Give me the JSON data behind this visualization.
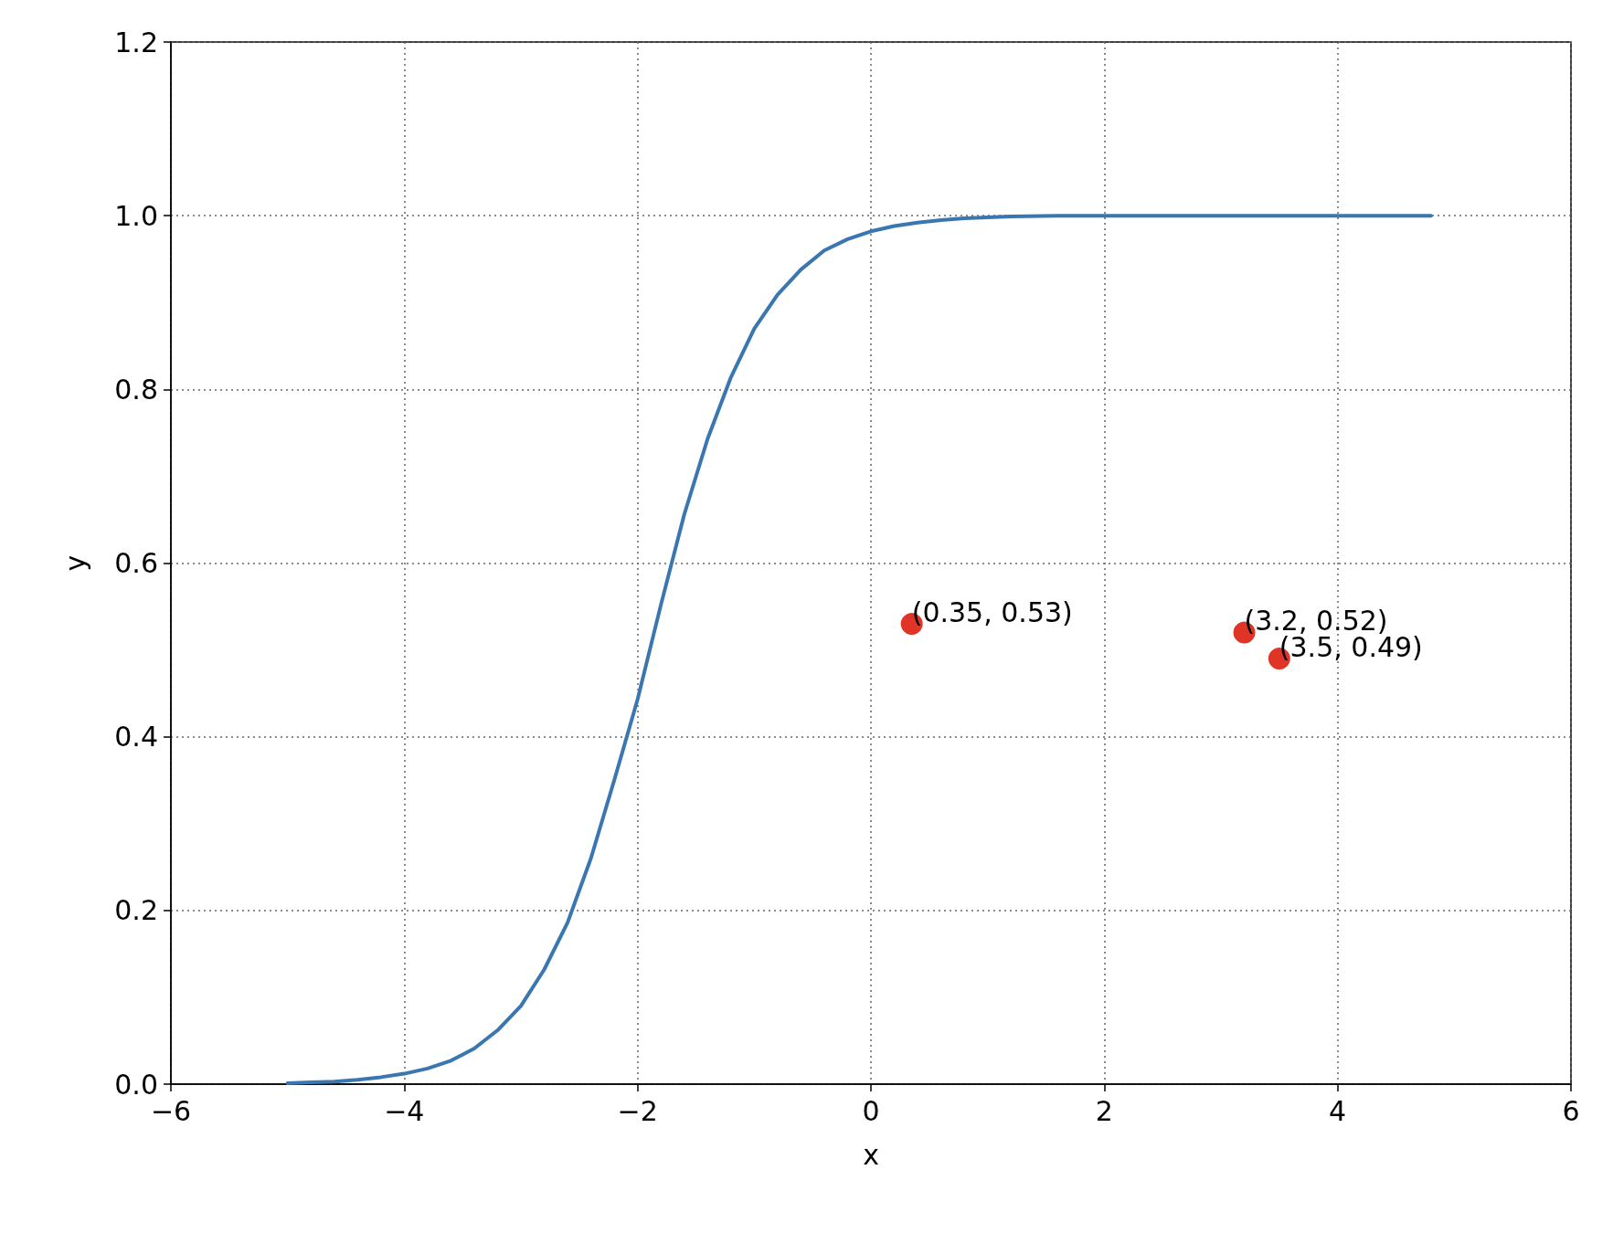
{
  "chart_data": {
    "type": "line",
    "xlabel": "x",
    "ylabel": "y",
    "xlim": [
      -6,
      6
    ],
    "ylim": [
      0,
      1.2
    ],
    "xticks": [
      {
        "value": -6,
        "label": "−6"
      },
      {
        "value": -4,
        "label": "−4"
      },
      {
        "value": -2,
        "label": "−2"
      },
      {
        "value": 0,
        "label": "0"
      },
      {
        "value": 2,
        "label": "2"
      },
      {
        "value": 4,
        "label": "4"
      },
      {
        "value": 6,
        "label": "6"
      }
    ],
    "yticks": [
      {
        "value": 0,
        "label": "0.0"
      },
      {
        "value": 0.2,
        "label": "0.2"
      },
      {
        "value": 0.4,
        "label": "0.4"
      },
      {
        "value": 0.6,
        "label": "0.6"
      },
      {
        "value": 0.8,
        "label": "0.8"
      },
      {
        "value": 1,
        "label": "1.0"
      },
      {
        "value": 1.2,
        "label": "1.2"
      }
    ],
    "grid": true,
    "series": [
      {
        "color": "#3a76b0",
        "marker": "none",
        "line_style": "solid",
        "x": [
          -5,
          -4.8,
          -4.6,
          -4.4,
          -4.2,
          -4,
          -3.8,
          -3.6,
          -3.4,
          -3.2,
          -3,
          -2.8,
          -2.6,
          -2.4,
          -2.2,
          -2,
          -1.8,
          -1.6,
          -1.4,
          -1.2,
          -1,
          -0.8,
          -0.6,
          -0.4,
          -0.2,
          0,
          0.2,
          0.4,
          0.6,
          0.8,
          1,
          1.2,
          1.6,
          2,
          3,
          4,
          4.8
        ],
        "values": [
          0.001,
          0.002,
          0.003,
          0.005,
          0.008,
          0.012,
          0.018,
          0.027,
          0.041,
          0.062,
          0.09,
          0.132,
          0.186,
          0.26,
          0.35,
          0.443,
          0.552,
          0.656,
          0.743,
          0.814,
          0.87,
          0.909,
          0.938,
          0.96,
          0.973,
          0.982,
          0.988,
          0.992,
          0.995,
          0.997,
          0.998,
          0.999,
          1,
          1,
          1,
          1,
          1
        ]
      },
      {
        "type": "scatter",
        "color": "#e03426",
        "marker": "circle",
        "x": [
          0.35,
          3.2,
          3.5
        ],
        "values": [
          0.53,
          0.52,
          0.49
        ],
        "value_labels": [
          "(0.35, 0.53)",
          "(3.2, 0.52)",
          "(3.5, 0.49)"
        ]
      }
    ]
  }
}
